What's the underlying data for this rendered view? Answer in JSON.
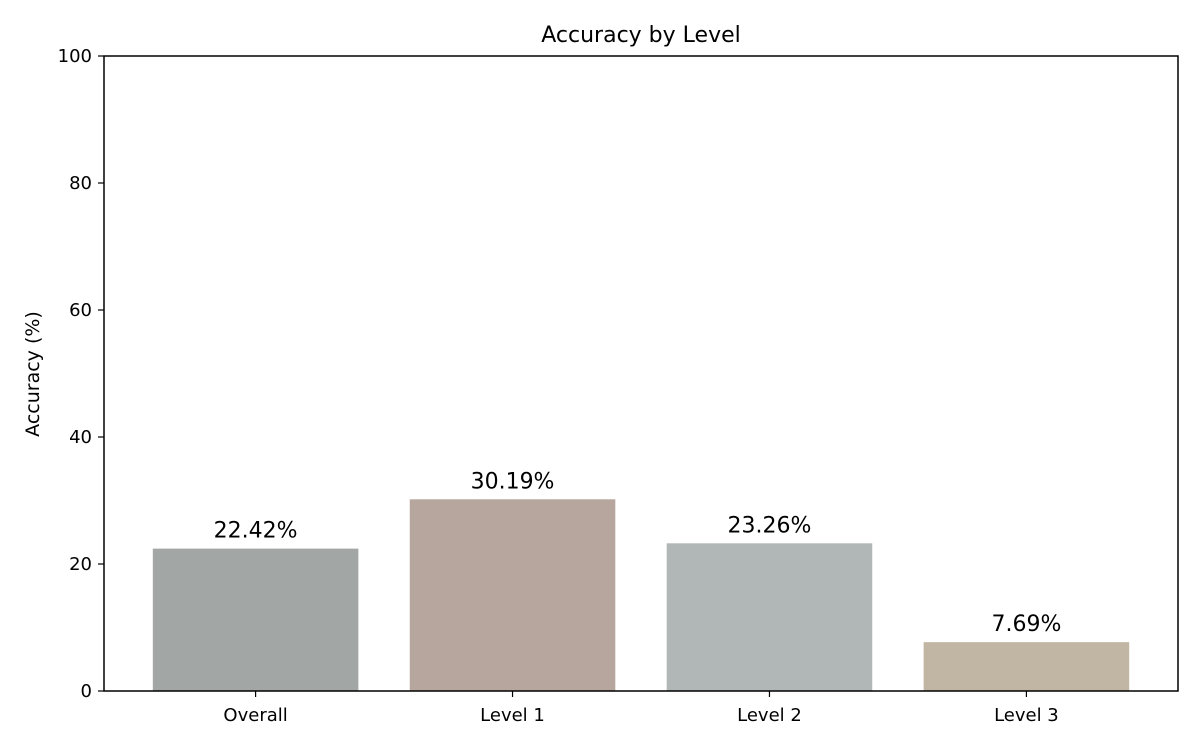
{
  "chart_data": {
    "type": "bar",
    "title": "Accuracy by Level",
    "xlabel": "",
    "ylabel": "Accuracy (%)",
    "ylim": [
      0,
      100
    ],
    "yticks": [
      0,
      20,
      40,
      60,
      80,
      100
    ],
    "grid": false,
    "categories": [
      "Overall",
      "Level 1",
      "Level 2",
      "Level 3"
    ],
    "values": [
      22.42,
      30.19,
      23.26,
      7.69
    ],
    "value_labels": [
      "22.42%",
      "30.19%",
      "23.26%",
      "7.69%"
    ],
    "colors": [
      "#a2a6a5",
      "#b6a69e",
      "#b1b7b7",
      "#c1b5a4"
    ]
  }
}
